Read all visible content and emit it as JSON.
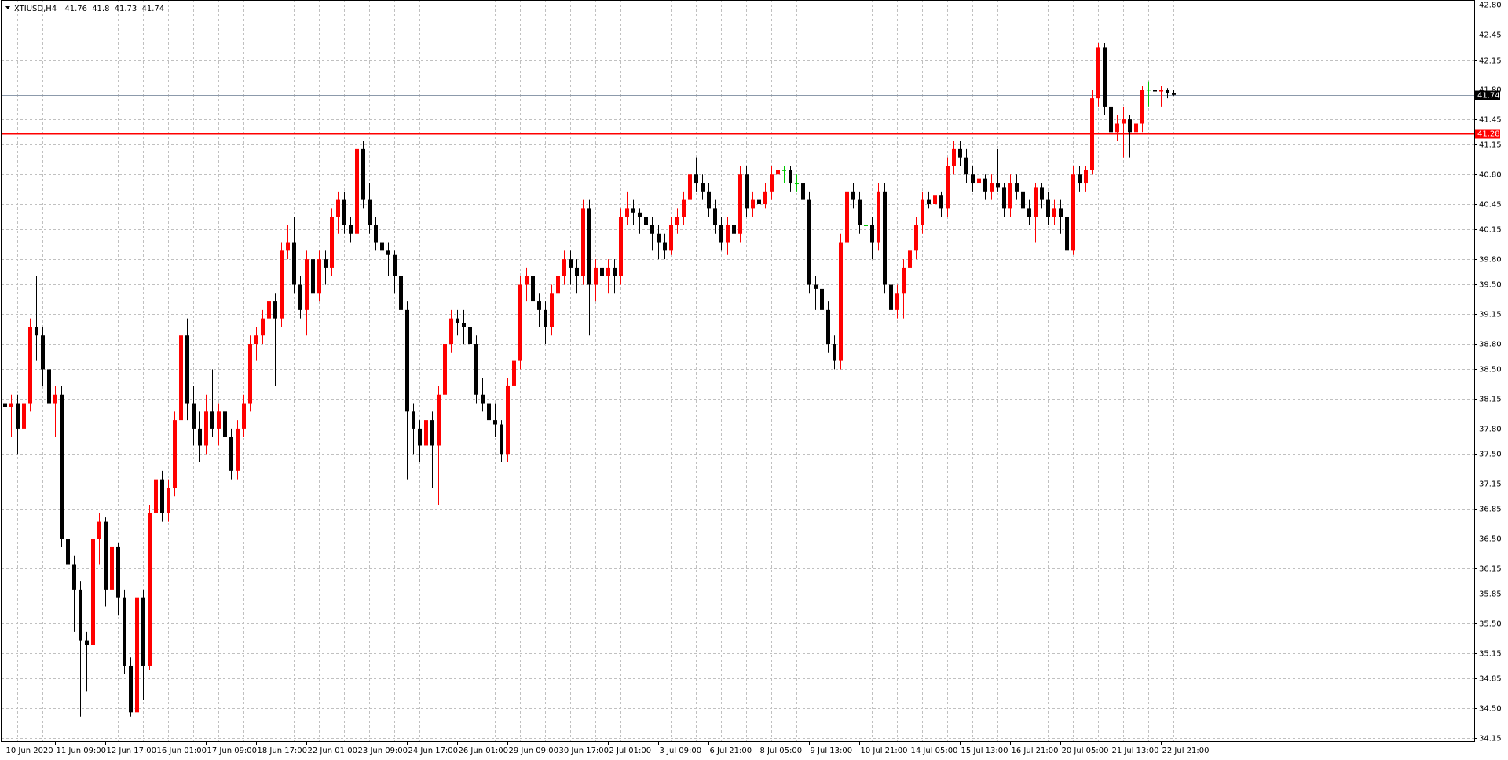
{
  "chart_data": {
    "type": "candlestick",
    "symbol": "XTIUSD,H4",
    "up_color": "#ff0000",
    "down_color": "#000000",
    "doji_color": "#00c800",
    "grid": true,
    "ylim": [
      34.11,
      42.86
    ],
    "yticks": [
      34.15,
      {
        "value": 34.5,
        "label": "34.50"
      },
      34.85,
      35.15,
      {
        "value": 35.5,
        "label": "35.50"
      },
      35.85,
      36.15,
      {
        "value": 36.5,
        "label": "36.50"
      },
      36.85,
      37.15,
      {
        "value": 37.5,
        "label": "37.50"
      },
      {
        "value": 37.8,
        "label": "37.80"
      },
      38.15,
      {
        "value": 38.5,
        "label": "38.50"
      },
      {
        "value": 38.8,
        "label": "38.80"
      },
      39.15,
      {
        "value": 39.5,
        "label": "39.50"
      },
      {
        "value": 39.8,
        "label": "39.80"
      },
      40.15,
      40.45,
      {
        "value": 40.8,
        "label": "40.80"
      },
      41.15,
      41.45,
      {
        "value": 41.8,
        "label": "41.80"
      },
      42.15,
      42.45,
      {
        "value": 42.8,
        "label": "42.80"
      }
    ],
    "levels": [
      {
        "value": 41.28,
        "color": "#ff0000"
      }
    ],
    "bid_color": "#8c9aab",
    "x": [
      "10 Jun 2020",
      null,
      null,
      null,
      null,
      null,
      null,
      null,
      "11 Jun 09:00",
      null,
      null,
      null,
      null,
      null,
      null,
      null,
      "12 Jun 17:00",
      null,
      null,
      null,
      null,
      null,
      null,
      null,
      "16 Jun 01:00",
      null,
      null,
      null,
      null,
      null,
      null,
      null,
      "17 Jun 09:00",
      null,
      null,
      null,
      null,
      null,
      null,
      null,
      "18 Jun 17:00",
      null,
      null,
      null,
      null,
      null,
      null,
      null,
      "22 Jun 01:00",
      null,
      null,
      null,
      null,
      null,
      null,
      null,
      "23 Jun 09:00",
      null,
      null,
      null,
      null,
      null,
      null,
      null,
      "24 Jun 17:00",
      null,
      null,
      null,
      null,
      null,
      null,
      null,
      "26 Jun 01:00",
      null,
      null,
      null,
      null,
      null,
      null,
      null,
      "29 Jun 09:00",
      null,
      null,
      null,
      null,
      null,
      null,
      null,
      "30 Jun 17:00",
      null,
      null,
      null,
      null,
      null,
      null,
      null,
      "2 Jul 01:00",
      null,
      null,
      null,
      null,
      null,
      null,
      null,
      "3 Jul 09:00",
      null,
      null,
      null,
      null,
      null,
      null,
      null,
      "6 Jul 21:00",
      null,
      null,
      null,
      null,
      null,
      null,
      null,
      "8 Jul 05:00",
      null,
      null,
      null,
      null,
      null,
      null,
      null,
      "9 Jul 13:00",
      null,
      null,
      null,
      null,
      null,
      null,
      null,
      "10 Jul 21:00",
      null,
      null,
      null,
      null,
      null,
      null,
      null,
      "14 Jul 05:00",
      null,
      null,
      null,
      null,
      null,
      null,
      null,
      "15 Jul 13:00",
      null,
      null,
      null,
      null,
      null,
      null,
      null,
      "16 Jul 21:00",
      null,
      null,
      null,
      null,
      null,
      null,
      null,
      "20 Jul 05:00",
      null,
      null,
      null,
      null,
      null,
      null,
      null,
      "21 Jul 13:00",
      null,
      null,
      null,
      null,
      null,
      null,
      null,
      "22 Jul 21:00",
      null,
      null
    ],
    "candles": [
      [
        38.1,
        38.3,
        37.9,
        38.05
      ],
      [
        38.05,
        38.2,
        37.7,
        38.1
      ],
      [
        38.1,
        38.2,
        37.5,
        37.8
      ],
      [
        37.8,
        38.3,
        37.5,
        38.1
      ],
      [
        38.1,
        39.1,
        38.0,
        39.0
      ],
      [
        39.0,
        39.6,
        38.6,
        38.9
      ],
      [
        38.9,
        39.0,
        38.3,
        38.5
      ],
      [
        38.5,
        38.6,
        37.8,
        38.1
      ],
      [
        38.1,
        38.3,
        37.7,
        38.2
      ],
      [
        38.2,
        38.3,
        36.4,
        36.5
      ],
      [
        36.5,
        36.6,
        35.5,
        36.2
      ],
      [
        36.2,
        36.3,
        35.4,
        35.9
      ],
      [
        35.9,
        36.0,
        34.4,
        35.3
      ],
      [
        35.3,
        35.4,
        34.7,
        35.25
      ],
      [
        35.25,
        36.6,
        35.2,
        36.5
      ],
      [
        36.5,
        36.8,
        36.2,
        36.7
      ],
      [
        36.7,
        36.75,
        35.7,
        35.9
      ],
      [
        35.9,
        36.5,
        35.5,
        36.4
      ],
      [
        36.4,
        36.45,
        35.6,
        35.8
      ],
      [
        35.8,
        35.9,
        34.9,
        35.0
      ],
      [
        35.0,
        35.1,
        34.4,
        34.45
      ],
      [
        34.45,
        35.85,
        34.4,
        35.8
      ],
      [
        35.8,
        35.9,
        34.6,
        35.0
      ],
      [
        35.0,
        36.9,
        34.95,
        36.8
      ],
      [
        36.8,
        37.3,
        36.7,
        37.2
      ],
      [
        37.2,
        37.3,
        36.7,
        36.8
      ],
      [
        36.8,
        37.2,
        36.7,
        37.1
      ],
      [
        37.1,
        38.0,
        37.0,
        37.9
      ],
      [
        37.9,
        39.0,
        37.8,
        38.9
      ],
      [
        38.9,
        39.1,
        37.9,
        38.1
      ],
      [
        38.1,
        38.3,
        37.6,
        37.8
      ],
      [
        37.8,
        38.0,
        37.4,
        37.6
      ],
      [
        37.6,
        38.2,
        37.5,
        38.0
      ],
      [
        38.0,
        38.5,
        37.7,
        37.8
      ],
      [
        37.8,
        38.1,
        37.6,
        38.0
      ],
      [
        38.0,
        38.2,
        37.6,
        37.7
      ],
      [
        37.7,
        37.8,
        37.2,
        37.3
      ],
      [
        37.3,
        37.9,
        37.2,
        37.8
      ],
      [
        37.8,
        38.2,
        37.7,
        38.1
      ],
      [
        38.1,
        38.9,
        38.0,
        38.8
      ],
      [
        38.8,
        39.0,
        38.6,
        38.9
      ],
      [
        38.9,
        39.2,
        38.8,
        39.1
      ],
      [
        39.1,
        39.6,
        39.0,
        39.3
      ],
      [
        39.3,
        39.4,
        38.3,
        39.1
      ],
      [
        39.1,
        40.0,
        39.0,
        39.9
      ],
      [
        39.9,
        40.2,
        39.8,
        40.0
      ],
      [
        40.0,
        40.3,
        39.4,
        39.5
      ],
      [
        39.5,
        39.6,
        39.1,
        39.2
      ],
      [
        39.2,
        39.9,
        38.9,
        39.8
      ],
      [
        39.8,
        39.9,
        39.3,
        39.4
      ],
      [
        39.4,
        39.9,
        39.3,
        39.8
      ],
      [
        39.8,
        39.9,
        39.5,
        39.7
      ],
      [
        39.7,
        40.4,
        39.6,
        40.3
      ],
      [
        40.3,
        40.6,
        40.1,
        40.5
      ],
      [
        40.5,
        40.6,
        40.1,
        40.2
      ],
      [
        40.2,
        40.3,
        40.0,
        40.1
      ],
      [
        40.1,
        41.45,
        40.0,
        41.1
      ],
      [
        41.1,
        41.2,
        40.4,
        40.5
      ],
      [
        40.5,
        40.7,
        40.1,
        40.2
      ],
      [
        40.2,
        40.3,
        39.9,
        40.0
      ],
      [
        40.0,
        40.2,
        39.8,
        39.9
      ],
      [
        39.9,
        40.0,
        39.6,
        39.85
      ],
      [
        39.85,
        39.9,
        39.4,
        39.6
      ],
      [
        39.6,
        39.7,
        39.1,
        39.2
      ],
      [
        39.2,
        39.3,
        37.2,
        38.0
      ],
      [
        38.0,
        38.1,
        37.5,
        37.8
      ],
      [
        37.8,
        37.9,
        37.4,
        37.6
      ],
      [
        37.6,
        38.0,
        37.5,
        37.9
      ],
      [
        37.9,
        38.0,
        37.1,
        37.6
      ],
      [
        37.6,
        38.3,
        36.9,
        38.2
      ],
      [
        38.2,
        38.9,
        38.1,
        38.8
      ],
      [
        38.8,
        39.2,
        38.7,
        39.1
      ],
      [
        39.1,
        39.2,
        38.9,
        39.05
      ],
      [
        39.05,
        39.2,
        38.8,
        39.0
      ],
      [
        39.0,
        39.1,
        38.6,
        38.8
      ],
      [
        38.8,
        38.9,
        38.1,
        38.2
      ],
      [
        38.2,
        38.4,
        38.0,
        38.1
      ],
      [
        38.1,
        38.2,
        37.7,
        37.9
      ],
      [
        37.9,
        38.1,
        37.7,
        37.85
      ],
      [
        37.85,
        37.9,
        37.4,
        37.5
      ],
      [
        37.5,
        38.4,
        37.4,
        38.3
      ],
      [
        38.3,
        38.7,
        38.2,
        38.6
      ],
      [
        38.6,
        39.6,
        38.5,
        39.5
      ],
      [
        39.5,
        39.7,
        39.3,
        39.6
      ],
      [
        39.6,
        39.7,
        39.2,
        39.3
      ],
      [
        39.3,
        39.4,
        39.0,
        39.2
      ],
      [
        39.2,
        39.3,
        38.8,
        39.0
      ],
      [
        39.0,
        39.5,
        38.9,
        39.4
      ],
      [
        39.4,
        39.7,
        39.3,
        39.6
      ],
      [
        39.6,
        39.9,
        39.5,
        39.8
      ],
      [
        39.8,
        39.9,
        39.5,
        39.7
      ],
      [
        39.7,
        39.8,
        39.4,
        39.6
      ],
      [
        39.6,
        40.5,
        39.5,
        40.4
      ],
      [
        40.4,
        40.5,
        38.9,
        39.5
      ],
      [
        39.5,
        39.8,
        39.3,
        39.7
      ],
      [
        39.7,
        39.9,
        39.5,
        39.6
      ],
      [
        39.6,
        39.8,
        39.4,
        39.7
      ],
      [
        39.7,
        39.8,
        39.4,
        39.6
      ],
      [
        39.6,
        40.4,
        39.5,
        40.3
      ],
      [
        40.3,
        40.6,
        40.2,
        40.4
      ],
      [
        40.4,
        40.5,
        40.2,
        40.35
      ],
      [
        40.35,
        40.4,
        40.1,
        40.3
      ],
      [
        40.3,
        40.4,
        40.0,
        40.2
      ],
      [
        40.2,
        40.3,
        39.9,
        40.1
      ],
      [
        40.1,
        40.2,
        39.8,
        40.0
      ],
      [
        40.0,
        40.1,
        39.8,
        39.9
      ],
      [
        39.9,
        40.3,
        39.85,
        40.2
      ],
      [
        40.2,
        40.4,
        40.1,
        40.3
      ],
      [
        40.3,
        40.6,
        40.2,
        40.5
      ],
      [
        40.5,
        40.9,
        40.4,
        40.8
      ],
      [
        40.8,
        41.0,
        40.6,
        40.7
      ],
      [
        40.7,
        40.8,
        40.5,
        40.6
      ],
      [
        40.6,
        40.7,
        40.3,
        40.4
      ],
      [
        40.4,
        40.5,
        40.1,
        40.2
      ],
      [
        40.2,
        40.3,
        39.9,
        40.0
      ],
      [
        40.0,
        40.3,
        39.85,
        40.2
      ],
      [
        40.2,
        40.3,
        40.0,
        40.1
      ],
      [
        40.1,
        40.9,
        40.0,
        40.8
      ],
      [
        40.8,
        40.9,
        40.3,
        40.4
      ],
      [
        40.4,
        40.6,
        40.3,
        40.5
      ],
      [
        40.5,
        40.6,
        40.3,
        40.45
      ],
      [
        40.45,
        40.7,
        40.4,
        40.6
      ],
      [
        40.6,
        40.9,
        40.5,
        40.8
      ],
      [
        40.8,
        40.95,
        40.7,
        40.85
      ],
      [
        40.85,
        40.9,
        40.7,
        40.85
      ],
      [
        40.85,
        40.9,
        40.6,
        40.7
      ],
      [
        40.7,
        40.8,
        40.6,
        40.7
      ],
      [
        40.7,
        40.8,
        40.4,
        40.5
      ],
      [
        40.5,
        40.6,
        39.4,
        39.5
      ],
      [
        39.5,
        39.6,
        39.2,
        39.45
      ],
      [
        39.45,
        39.5,
        39.0,
        39.2
      ],
      [
        39.2,
        39.3,
        38.7,
        38.8
      ],
      [
        38.8,
        38.9,
        38.5,
        38.6
      ],
      [
        38.6,
        40.1,
        38.5,
        40.0
      ],
      [
        40.0,
        40.7,
        39.9,
        40.6
      ],
      [
        40.6,
        40.7,
        40.4,
        40.5
      ],
      [
        40.5,
        40.6,
        40.1,
        40.2
      ],
      [
        40.2,
        40.3,
        40.0,
        40.2
      ],
      [
        40.2,
        40.3,
        39.8,
        40.0
      ],
      [
        40.0,
        40.7,
        39.9,
        40.6
      ],
      [
        40.6,
        40.7,
        39.4,
        39.5
      ],
      [
        39.5,
        39.6,
        39.1,
        39.2
      ],
      [
        39.2,
        39.5,
        39.1,
        39.4
      ],
      [
        39.4,
        39.8,
        39.1,
        39.7
      ],
      [
        39.7,
        40.0,
        39.6,
        39.9
      ],
      [
        39.9,
        40.3,
        39.8,
        40.2
      ],
      [
        40.2,
        40.6,
        40.1,
        40.5
      ],
      [
        40.5,
        40.6,
        40.4,
        40.45
      ],
      [
        40.45,
        40.6,
        40.3,
        40.55
      ],
      [
        40.55,
        40.6,
        40.3,
        40.4
      ],
      [
        40.4,
        41.0,
        40.3,
        40.9
      ],
      [
        40.9,
        41.2,
        40.8,
        41.1
      ],
      [
        41.1,
        41.2,
        40.9,
        41.0
      ],
      [
        41.0,
        41.1,
        40.7,
        40.8
      ],
      [
        40.8,
        40.9,
        40.6,
        40.7
      ],
      [
        40.7,
        40.8,
        40.6,
        40.75
      ],
      [
        40.75,
        40.8,
        40.5,
        40.6
      ],
      [
        40.6,
        40.8,
        40.5,
        40.7
      ],
      [
        40.7,
        41.1,
        40.6,
        40.65
      ],
      [
        40.65,
        40.7,
        40.3,
        40.4
      ],
      [
        40.4,
        40.8,
        40.3,
        40.7
      ],
      [
        40.7,
        40.8,
        40.5,
        40.6
      ],
      [
        40.6,
        40.7,
        40.3,
        40.4
      ],
      [
        40.4,
        40.5,
        40.2,
        40.3
      ],
      [
        40.3,
        40.7,
        40.0,
        40.65
      ],
      [
        40.65,
        40.7,
        40.4,
        40.5
      ],
      [
        40.5,
        40.6,
        40.2,
        40.3
      ],
      [
        40.3,
        40.5,
        40.2,
        40.4
      ],
      [
        40.4,
        40.5,
        40.1,
        40.3
      ],
      [
        40.3,
        40.4,
        39.8,
        39.9
      ],
      [
        39.9,
        40.9,
        39.85,
        40.8
      ],
      [
        40.8,
        40.9,
        40.6,
        40.7
      ],
      [
        40.7,
        40.9,
        40.6,
        40.85
      ],
      [
        40.85,
        41.8,
        40.8,
        41.7
      ],
      [
        41.7,
        42.35,
        41.6,
        42.3
      ],
      [
        42.3,
        42.35,
        41.5,
        41.6
      ],
      [
        41.6,
        41.7,
        41.2,
        41.3
      ],
      [
        41.3,
        41.5,
        41.2,
        41.4
      ],
      [
        41.4,
        41.6,
        41.0,
        41.45
      ],
      [
        41.45,
        41.5,
        41.0,
        41.3
      ],
      [
        41.3,
        41.5,
        41.1,
        41.4
      ],
      [
        41.4,
        41.85,
        41.3,
        41.8
      ],
      [
        41.8,
        41.9,
        41.6,
        41.8
      ],
      [
        41.8,
        41.85,
        41.7,
        41.78
      ],
      [
        41.78,
        41.85,
        41.6,
        41.8
      ],
      [
        41.8,
        41.82,
        41.7,
        41.76
      ],
      [
        41.76,
        41.8,
        41.73,
        41.74
      ]
    ]
  }
}
